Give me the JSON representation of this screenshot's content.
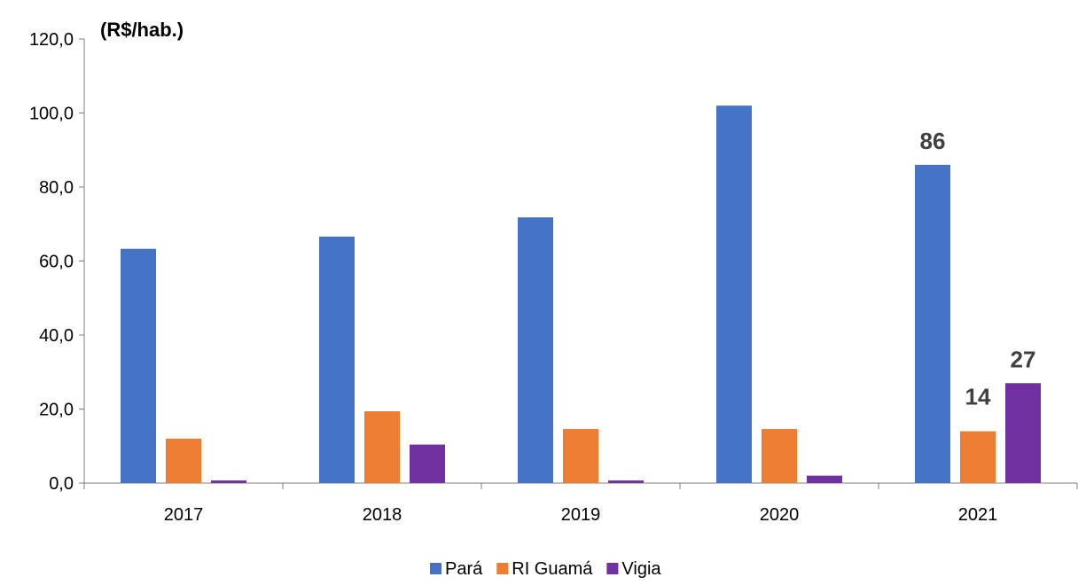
{
  "chart_data": {
    "type": "bar",
    "ylabel": "(R$/hab.)",
    "categories": [
      "2017",
      "2018",
      "2019",
      "2020",
      "2021"
    ],
    "ylim": [
      0,
      120
    ],
    "yticks": [
      "0,0",
      "20,0",
      "40,0",
      "60,0",
      "80,0",
      "100,0",
      "120,0"
    ],
    "grid": false,
    "legend_position": "bottom",
    "series": [
      {
        "name": "Pará",
        "color": "#4472C4",
        "values": [
          63.3,
          66.6,
          71.8,
          102.0,
          86.0
        ]
      },
      {
        "name": "RI Guamá",
        "color": "#ED7D31",
        "values": [
          12.0,
          19.4,
          14.6,
          14.6,
          14.0
        ]
      },
      {
        "name": "Vigia",
        "color": "#7030A0",
        "values": [
          0.7,
          10.4,
          0.7,
          2.0,
          27.0
        ]
      }
    ],
    "data_labels": [
      {
        "series": 0,
        "index": 4,
        "text": "86"
      },
      {
        "series": 1,
        "index": 4,
        "text": "14"
      },
      {
        "series": 2,
        "index": 4,
        "text": "27"
      }
    ]
  }
}
